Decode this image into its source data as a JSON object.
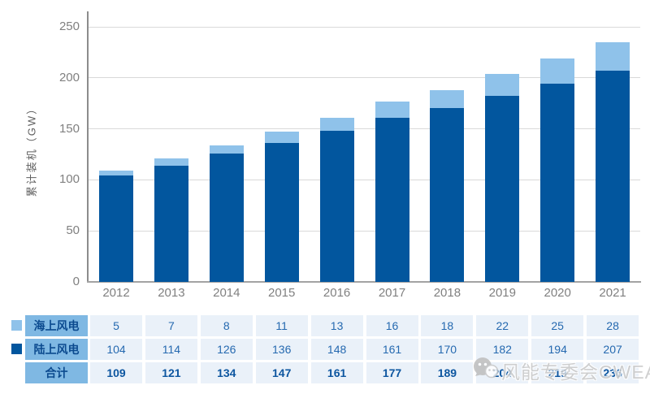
{
  "chart_data": {
    "type": "bar",
    "stacked": true,
    "title": "",
    "xlabel": "",
    "ylabel": "累计装机（GW）",
    "categories": [
      "2012",
      "2013",
      "2014",
      "2015",
      "2016",
      "2017",
      "2018",
      "2019",
      "2020",
      "2021"
    ],
    "series": [
      {
        "name": "海上风电",
        "color": "#8fc2ea",
        "values": [
          5,
          7,
          8,
          11,
          13,
          16,
          18,
          22,
          25,
          28
        ]
      },
      {
        "name": "陆上风电",
        "color": "#02569e",
        "values": [
          104,
          114,
          126,
          136,
          148,
          161,
          170,
          182,
          194,
          207
        ]
      }
    ],
    "totals_label": "合计",
    "totals": [
      109,
      121,
      134,
      147,
      161,
      177,
      189,
      204,
      219,
      236
    ],
    "yticks": [
      0,
      50,
      100,
      150,
      200,
      250
    ],
    "ylim": [
      0,
      250
    ],
    "grid": true,
    "legend_position": "table-left"
  },
  "colors": {
    "offshore_bar": "#8fc2ea",
    "onshore_bar": "#02569e",
    "table_label_bg": "#7fb8e3",
    "table_data_bg": "#eaf1f9",
    "gridline": "#d9d9d9",
    "axis_text": "#808080"
  },
  "watermark": {
    "icon": "wechat-icon",
    "text": "风能专委会CWEA"
  }
}
